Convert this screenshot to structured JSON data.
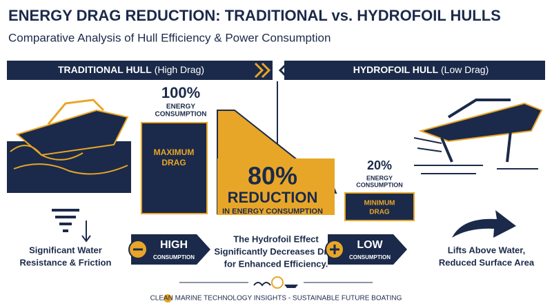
{
  "header": {
    "title": "ENERGY DRAG REDUCTION: TRADITIONAL vs. HYDROFOIL HULLS",
    "subtitle": "Comparative Analysis of Hull Efficiency & Power Consumption"
  },
  "left": {
    "banner_bold": "TRADITIONAL HULL",
    "banner_note": "(High Drag)",
    "percent": "100%",
    "energy": [
      "ENERGY",
      "CONSUMPTION"
    ],
    "box": [
      "MAXIMUM",
      "DRAG"
    ],
    "caption": [
      "Significant Water",
      "Resistance & Friction"
    ],
    "badge": [
      "HIGH",
      "CONSUMPTION"
    ]
  },
  "right": {
    "banner_bold": "HYDROFOIL HULL",
    "banner_note": "(Low Drag)",
    "percent": "20%",
    "energy": [
      "ENERGY",
      "CONSUMPTION"
    ],
    "box": [
      "MINIMUM",
      "DRAG"
    ],
    "caption": [
      "Lifts Above Water,",
      "Reduced Surface Area"
    ],
    "badge": [
      "LOW",
      "CONSUMPTION"
    ]
  },
  "center": {
    "percent": "80%",
    "reduction": "REDUCTION",
    "detail": "IN ENERGY CONSUMPTION",
    "effect": [
      "The Hydrofoil Effect",
      "Significantly Decreases Drag",
      "for Enhanced Efficiency."
    ]
  },
  "footer": {
    "text": "CLEAN MARINE TECHNOLOGY INSIGHTS - SUSTAINABLE FUTURE BOATING"
  }
}
